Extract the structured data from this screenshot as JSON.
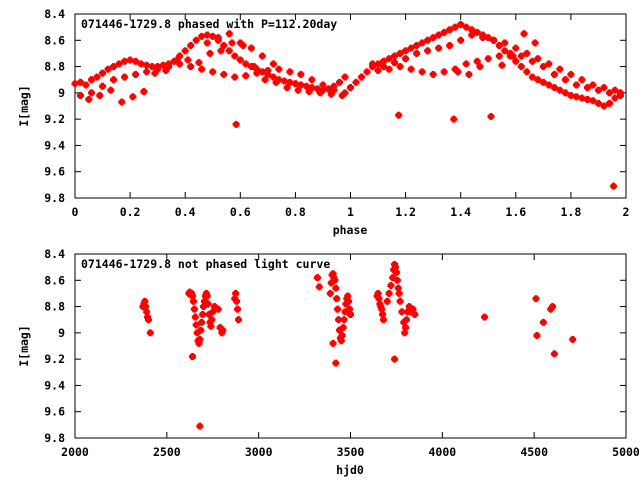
{
  "chart_data": [
    {
      "type": "scatter",
      "title": "071446-1729.8 phased with P=112.20day",
      "xlabel": "phase",
      "ylabel": "I[mag]",
      "xlim": [
        0,
        2
      ],
      "ylim": [
        9.8,
        8.4
      ],
      "y_inverted": true,
      "xticks": [
        0,
        0.2,
        0.4,
        0.6,
        0.8,
        1,
        1.2,
        1.4,
        1.6,
        1.8,
        2
      ],
      "xtick_labels": [
        "0",
        "0.2",
        "0.4",
        "0.6",
        "0.8",
        "1",
        "1.2",
        "1.4",
        "1.6",
        "1.8",
        "2"
      ],
      "yticks": [
        8.4,
        8.6,
        8.8,
        9,
        9.2,
        9.4,
        9.6,
        9.8
      ],
      "ytick_labels": [
        "8.4",
        "8.6",
        "8.8",
        "9",
        "9.2",
        "9.4",
        "9.6",
        "9.8"
      ],
      "grid": false,
      "marker_color": "#ff0000",
      "series": [
        {
          "x": [
            0.0,
            0.02,
            0.04,
            0.06,
            0.08,
            0.1,
            0.12,
            0.14,
            0.16,
            0.18,
            0.2,
            0.22,
            0.24,
            0.26,
            0.28,
            0.3,
            0.32,
            0.34,
            0.36,
            0.38,
            0.4,
            0.42,
            0.44,
            0.46,
            0.48,
            0.5,
            0.52,
            0.54,
            0.56,
            0.58,
            0.6,
            0.62,
            0.64,
            0.66,
            0.68,
            0.7,
            0.72,
            0.74,
            0.76,
            0.78,
            0.8,
            0.82,
            0.84,
            0.86,
            0.88,
            0.9,
            0.92,
            0.94,
            0.96,
            0.98,
            0.02,
            0.06,
            0.1,
            0.14,
            0.18,
            0.22,
            0.26,
            0.3,
            0.34,
            0.38,
            0.42,
            0.46,
            0.5,
            0.54,
            0.58,
            0.62,
            0.66,
            0.7,
            0.74,
            0.78,
            0.82,
            0.86,
            0.9,
            0.94,
            0.98,
            0.05,
            0.09,
            0.13,
            0.17,
            0.21,
            0.25,
            0.29,
            0.33,
            0.37,
            0.41,
            0.45,
            0.49,
            0.53,
            0.57,
            0.61,
            0.65,
            0.69,
            0.73,
            0.77,
            0.81,
            0.85,
            0.89,
            0.93,
            0.97,
            0.585,
            0.48,
            0.52,
            0.56,
            0.6,
            0.64,
            0.68,
            0.72
          ],
          "y": [
            8.93,
            8.92,
            8.94,
            8.9,
            8.88,
            8.85,
            8.82,
            8.8,
            8.78,
            8.76,
            8.75,
            8.76,
            8.78,
            8.79,
            8.8,
            8.8,
            8.79,
            8.78,
            8.76,
            8.72,
            8.68,
            8.64,
            8.6,
            8.57,
            8.56,
            8.57,
            8.6,
            8.64,
            8.68,
            8.72,
            8.75,
            8.78,
            8.8,
            8.82,
            8.84,
            8.86,
            8.88,
            8.9,
            8.91,
            8.92,
            8.93,
            8.94,
            8.95,
            8.96,
            8.97,
            8.98,
            8.97,
            8.95,
            8.92,
            8.88,
            9.02,
            9.0,
            8.95,
            8.9,
            8.88,
            8.86,
            8.84,
            8.82,
            8.8,
            8.78,
            8.8,
            8.82,
            8.84,
            8.86,
            8.88,
            8.87,
            8.85,
            8.83,
            8.82,
            8.84,
            8.86,
            8.9,
            8.94,
            8.98,
            9.0,
            9.05,
            9.02,
            8.98,
            9.07,
            9.03,
            8.99,
            8.85,
            8.83,
            8.75,
            8.75,
            8.77,
            8.7,
            8.68,
            8.62,
            8.64,
            8.8,
            8.9,
            8.92,
            8.96,
            8.98,
            8.99,
            9.0,
            9.01,
            9.02,
            9.24,
            8.62,
            8.58,
            8.55,
            8.62,
            8.66,
            8.72,
            8.78
          ]
        },
        {
          "x": [
            1.0,
            1.02,
            1.04,
            1.06,
            1.08,
            1.1,
            1.12,
            1.14,
            1.16,
            1.18,
            1.2,
            1.22,
            1.24,
            1.26,
            1.28,
            1.3,
            1.32,
            1.34,
            1.36,
            1.38,
            1.4,
            1.42,
            1.44,
            1.46,
            1.48,
            1.5,
            1.52,
            1.54,
            1.56,
            1.58,
            1.6,
            1.62,
            1.64,
            1.66,
            1.68,
            1.7,
            1.72,
            1.74,
            1.76,
            1.78,
            1.8,
            1.82,
            1.84,
            1.86,
            1.88,
            1.9,
            1.92,
            1.94,
            1.96,
            1.98,
            1.1,
            1.14,
            1.18,
            1.22,
            1.26,
            1.3,
            1.34,
            1.38,
            1.42,
            1.46,
            1.5,
            1.54,
            1.58,
            1.62,
            1.66,
            1.7,
            1.74,
            1.78,
            1.82,
            1.86,
            1.9,
            1.94,
            1.98,
            1.08,
            1.12,
            1.16,
            1.2,
            1.24,
            1.28,
            1.32,
            1.36,
            1.4,
            1.44,
            1.48,
            1.52,
            1.56,
            1.6,
            1.64,
            1.68,
            1.72,
            1.76,
            1.8,
            1.84,
            1.88,
            1.92,
            1.96,
            1.175,
            1.375,
            1.51,
            1.955,
            1.39,
            1.43,
            1.47,
            1.55,
            1.59,
            1.63,
            1.67
          ],
          "y": [
            8.96,
            8.92,
            8.88,
            8.84,
            8.8,
            8.78,
            8.76,
            8.74,
            8.72,
            8.7,
            8.68,
            8.66,
            8.64,
            8.62,
            8.6,
            8.58,
            8.56,
            8.54,
            8.52,
            8.5,
            8.48,
            8.5,
            8.52,
            8.54,
            8.56,
            8.58,
            8.6,
            8.64,
            8.68,
            8.72,
            8.76,
            8.8,
            8.84,
            8.88,
            8.9,
            8.92,
            8.94,
            8.96,
            8.98,
            9.0,
            9.02,
            9.03,
            9.04,
            9.05,
            9.06,
            9.08,
            9.1,
            9.08,
            9.04,
            9.0,
            8.83,
            8.82,
            8.8,
            8.82,
            8.84,
            8.86,
            8.84,
            8.82,
            8.78,
            8.76,
            8.74,
            8.72,
            8.7,
            8.72,
            8.76,
            8.8,
            8.86,
            8.9,
            8.94,
            8.96,
            8.98,
            9.0,
            9.02,
            8.78,
            8.8,
            8.77,
            8.74,
            8.7,
            8.68,
            8.66,
            8.64,
            8.6,
            8.56,
            8.58,
            8.6,
            8.62,
            8.66,
            8.7,
            8.74,
            8.78,
            8.82,
            8.86,
            8.9,
            8.94,
            8.96,
            8.98,
            9.17,
            9.2,
            9.18,
            9.71,
            8.84,
            8.86,
            8.8,
            8.79,
            8.72,
            8.55,
            8.62
          ]
        }
      ]
    },
    {
      "type": "scatter",
      "title": "071446-1729.8 not phased light curve",
      "xlabel": "hjd0",
      "ylabel": "I[mag]",
      "xlim": [
        2000,
        5000
      ],
      "ylim": [
        9.8,
        8.4
      ],
      "y_inverted": true,
      "xticks": [
        2000,
        2500,
        3000,
        3500,
        4000,
        4500,
        5000
      ],
      "xtick_labels": [
        "2000",
        "2500",
        "3000",
        "3500",
        "4000",
        "4500",
        "5000"
      ],
      "yticks": [
        8.4,
        8.6,
        8.8,
        9,
        9.2,
        9.4,
        9.6,
        9.8
      ],
      "ytick_labels": [
        "8.4",
        "8.6",
        "8.8",
        "9",
        "9.2",
        "9.4",
        "9.6",
        "9.8"
      ],
      "grid": false,
      "marker_color": "#ff0000",
      "series": [
        {
          "x": [
            2370,
            2375,
            2380,
            2385,
            2390,
            2395,
            2400,
            2410,
            2620,
            2625,
            2630,
            2635,
            2640,
            2645,
            2650,
            2655,
            2660,
            2665,
            2670,
            2675,
            2680,
            2685,
            2690,
            2695,
            2700,
            2705,
            2710,
            2715,
            2720,
            2725,
            2730,
            2735,
            2740,
            2745,
            2750,
            2760,
            2780,
            2790,
            2800,
            2805,
            2870,
            2875,
            2880,
            2885,
            2890,
            2640,
            2680,
            3320,
            3330,
            3390,
            3395,
            3400,
            3405,
            3410,
            3415,
            3420,
            3425,
            3430,
            3435,
            3440,
            3445,
            3450,
            3455,
            3460,
            3465,
            3470,
            3475,
            3480,
            3485,
            3490,
            3495,
            3500,
            3420,
            3405,
            3645,
            3650,
            3655,
            3660,
            3665,
            3670,
            3675,
            3680,
            3700,
            3710,
            3720,
            3730,
            3735,
            3740,
            3745,
            3750,
            3755,
            3760,
            3765,
            3770,
            3780,
            3790,
            3795,
            3800,
            3805,
            3810,
            3820,
            3830,
            3840,
            3850,
            3740,
            4230,
            4510,
            4515,
            4550,
            4590,
            4600,
            4610,
            4710
          ],
          "y": [
            8.8,
            8.78,
            8.76,
            8.8,
            8.84,
            8.88,
            8.9,
            9.0,
            8.7,
            8.69,
            8.71,
            8.7,
            8.72,
            8.76,
            8.82,
            8.88,
            8.94,
            9.0,
            9.06,
            9.08,
            9.05,
            8.98,
            8.92,
            8.86,
            8.8,
            8.76,
            8.72,
            8.7,
            8.72,
            8.78,
            8.86,
            8.92,
            8.95,
            8.9,
            8.84,
            8.8,
            8.82,
            8.96,
            9.0,
            8.98,
            8.74,
            8.7,
            8.76,
            8.82,
            8.9,
            9.18,
            9.71,
            8.58,
            8.65,
            8.7,
            8.62,
            8.56,
            8.55,
            8.58,
            8.6,
            8.66,
            8.74,
            8.82,
            8.9,
            8.98,
            9.04,
            9.06,
            9.02,
            8.96,
            8.9,
            8.84,
            8.78,
            8.74,
            8.72,
            8.76,
            8.82,
            8.86,
            9.23,
            9.08,
            8.72,
            8.7,
            8.74,
            8.78,
            8.8,
            8.82,
            8.86,
            8.9,
            8.76,
            8.7,
            8.64,
            8.58,
            8.52,
            8.48,
            8.5,
            8.54,
            8.6,
            8.66,
            8.7,
            8.76,
            8.84,
            8.92,
            9.0,
            8.96,
            8.9,
            8.84,
            8.8,
            8.84,
            8.82,
            8.86,
            9.2,
            8.88,
            8.74,
            9.02,
            8.92,
            8.82,
            8.8,
            9.16,
            9.05
          ]
        }
      ]
    }
  ]
}
